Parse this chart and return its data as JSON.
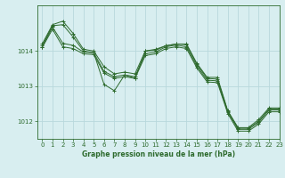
{
  "title": "Graphe pression niveau de la mer (hPa)",
  "background_color": "#d8eef0",
  "grid_color": "#b8d8dc",
  "line_color": "#2d6a2d",
  "marker_color": "#2d6a2d",
  "xlim": [
    -0.5,
    23
  ],
  "ylim": [
    1011.5,
    1015.3
  ],
  "yticks": [
    1012,
    1013,
    1014
  ],
  "xticks": [
    0,
    1,
    2,
    3,
    4,
    5,
    6,
    7,
    8,
    9,
    10,
    11,
    12,
    13,
    14,
    15,
    16,
    17,
    18,
    19,
    20,
    21,
    22,
    23
  ],
  "series": [
    [
      1014.2,
      1014.75,
      1014.85,
      1014.5,
      1014.05,
      1014.0,
      1013.55,
      1013.35,
      1013.4,
      1013.35,
      1014.0,
      1014.05,
      1014.15,
      1014.2,
      1014.2,
      1013.65,
      1013.25,
      1013.25,
      1012.3,
      1011.82,
      1011.82,
      1012.05,
      1012.38,
      1012.38
    ],
    [
      1014.15,
      1014.72,
      1014.75,
      1014.4,
      1014.0,
      1013.95,
      1013.05,
      1012.87,
      1013.32,
      1013.22,
      1014.0,
      1014.02,
      1014.15,
      1014.2,
      1014.18,
      1013.62,
      1013.22,
      1013.2,
      1012.28,
      1011.8,
      1011.8,
      1012.0,
      1012.35,
      1012.35
    ],
    [
      1014.12,
      1014.68,
      1014.22,
      1014.16,
      1013.97,
      1013.95,
      1013.42,
      1013.27,
      1013.32,
      1013.27,
      1013.92,
      1013.97,
      1014.12,
      1014.17,
      1014.12,
      1013.57,
      1013.17,
      1013.15,
      1012.27,
      1011.77,
      1011.77,
      1011.97,
      1012.32,
      1012.32
    ],
    [
      1014.1,
      1014.62,
      1014.12,
      1014.07,
      1013.92,
      1013.9,
      1013.37,
      1013.22,
      1013.27,
      1013.22,
      1013.87,
      1013.92,
      1014.07,
      1014.12,
      1014.07,
      1013.52,
      1013.12,
      1013.1,
      1012.22,
      1011.72,
      1011.72,
      1011.92,
      1012.27,
      1012.27
    ]
  ]
}
